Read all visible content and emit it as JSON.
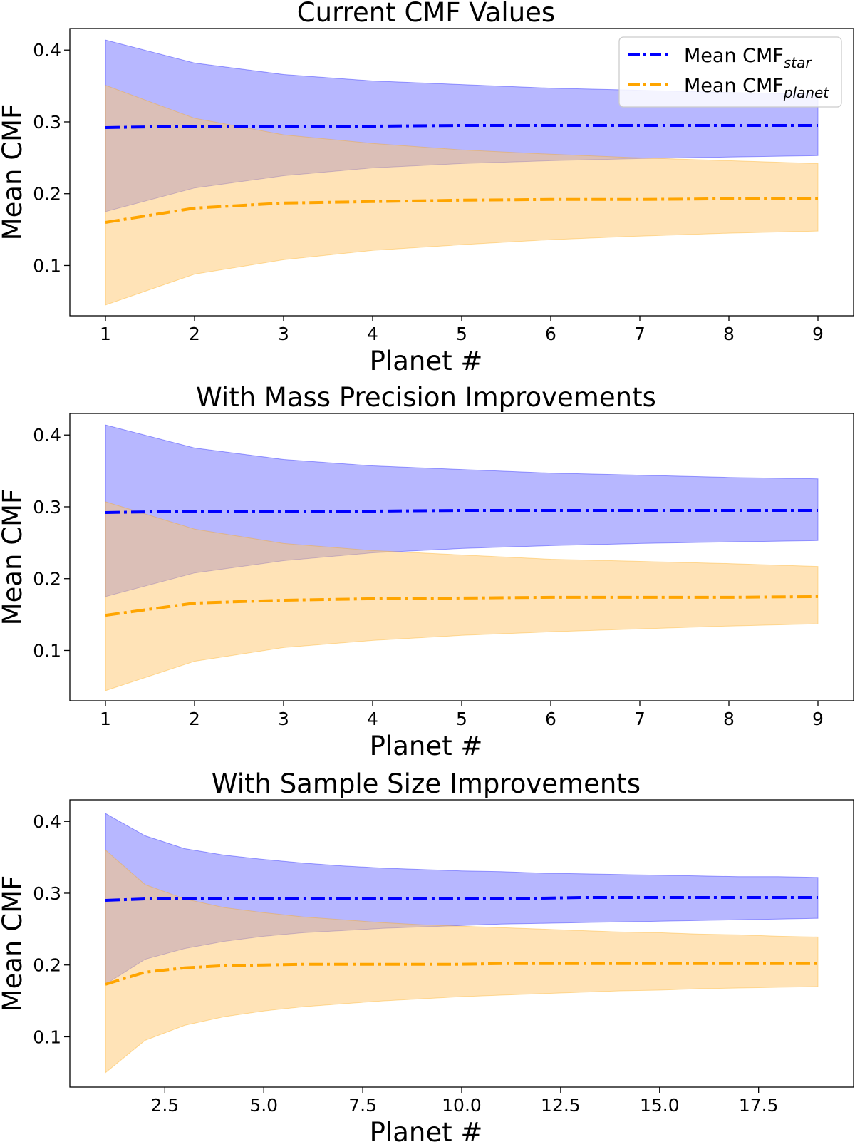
{
  "colors": {
    "star": "#0000ff",
    "planet": "#ffa500",
    "star_fill": "#7070ff",
    "planet_fill": "#ffc870"
  },
  "legend": {
    "placement": "top-right",
    "entries": [
      {
        "base": "Mean CMF",
        "sub": "star"
      },
      {
        "base": "Mean CMF",
        "sub": "planet"
      }
    ]
  },
  "chart_data": [
    {
      "type": "line",
      "title": "Current CMF Values",
      "xlabel": "Planet #",
      "ylabel": "Mean CMF",
      "xlim": [
        0.6,
        9.4
      ],
      "ylim": [
        0.03,
        0.43
      ],
      "xticks": [
        1,
        2,
        3,
        4,
        5,
        6,
        7,
        8,
        9
      ],
      "xtick_labels": [
        "1",
        "2",
        "3",
        "4",
        "5",
        "6",
        "7",
        "8",
        "9"
      ],
      "yticks": [
        0.1,
        0.2,
        0.3,
        0.4
      ],
      "ytick_labels": [
        "0.1",
        "0.2",
        "0.3",
        "0.4"
      ],
      "grid": false,
      "legend": true,
      "x": [
        1,
        2,
        3,
        4,
        5,
        6,
        7,
        8,
        9
      ],
      "series": [
        {
          "name": "Mean CMF star",
          "key": "star",
          "mean": [
            0.292,
            0.294,
            0.294,
            0.294,
            0.295,
            0.295,
            0.295,
            0.295,
            0.295
          ],
          "lower": [
            0.175,
            0.208,
            0.225,
            0.236,
            0.242,
            0.246,
            0.249,
            0.251,
            0.253
          ],
          "upper": [
            0.414,
            0.382,
            0.366,
            0.357,
            0.352,
            0.347,
            0.344,
            0.341,
            0.339
          ]
        },
        {
          "name": "Mean CMF planet",
          "key": "planet",
          "mean": [
            0.16,
            0.18,
            0.187,
            0.189,
            0.191,
            0.192,
            0.192,
            0.193,
            0.193
          ],
          "lower": [
            0.045,
            0.088,
            0.108,
            0.121,
            0.129,
            0.136,
            0.141,
            0.145,
            0.148
          ],
          "upper": [
            0.351,
            0.305,
            0.282,
            0.27,
            0.261,
            0.255,
            0.25,
            0.246,
            0.242
          ]
        }
      ]
    },
    {
      "type": "line",
      "title": "With Mass Precision Improvements",
      "xlabel": "Planet #",
      "ylabel": "Mean CMF",
      "xlim": [
        0.6,
        9.4
      ],
      "ylim": [
        0.03,
        0.43
      ],
      "xticks": [
        1,
        2,
        3,
        4,
        5,
        6,
        7,
        8,
        9
      ],
      "xtick_labels": [
        "1",
        "2",
        "3",
        "4",
        "5",
        "6",
        "7",
        "8",
        "9"
      ],
      "yticks": [
        0.1,
        0.2,
        0.3,
        0.4
      ],
      "ytick_labels": [
        "0.1",
        "0.2",
        "0.3",
        "0.4"
      ],
      "grid": false,
      "legend": false,
      "x": [
        1,
        2,
        3,
        4,
        5,
        6,
        7,
        8,
        9
      ],
      "series": [
        {
          "name": "Mean CMF star",
          "key": "star",
          "mean": [
            0.292,
            0.294,
            0.294,
            0.294,
            0.295,
            0.295,
            0.295,
            0.295,
            0.295
          ],
          "lower": [
            0.175,
            0.208,
            0.225,
            0.236,
            0.242,
            0.246,
            0.249,
            0.251,
            0.253
          ],
          "upper": [
            0.414,
            0.382,
            0.366,
            0.357,
            0.352,
            0.347,
            0.344,
            0.341,
            0.339
          ]
        },
        {
          "name": "Mean CMF planet",
          "key": "planet",
          "mean": [
            0.149,
            0.166,
            0.17,
            0.172,
            0.173,
            0.174,
            0.174,
            0.174,
            0.175
          ],
          "lower": [
            0.044,
            0.085,
            0.104,
            0.114,
            0.121,
            0.126,
            0.13,
            0.134,
            0.137
          ],
          "upper": [
            0.307,
            0.269,
            0.249,
            0.239,
            0.233,
            0.227,
            0.224,
            0.221,
            0.217
          ]
        }
      ]
    },
    {
      "type": "line",
      "title": "With Sample Size Improvements",
      "xlabel": "Planet #",
      "ylabel": "Mean CMF",
      "xlim": [
        0.1,
        19.9
      ],
      "ylim": [
        0.03,
        0.43
      ],
      "xticks": [
        2.5,
        5,
        7.5,
        10,
        12.5,
        15,
        17.5
      ],
      "xtick_labels": [
        "2.5",
        "5.0",
        "7.5",
        "10.0",
        "12.5",
        "15.0",
        "17.5"
      ],
      "yticks": [
        0.1,
        0.2,
        0.3,
        0.4
      ],
      "ytick_labels": [
        "0.1",
        "0.2",
        "0.3",
        "0.4"
      ],
      "grid": false,
      "legend": false,
      "x": [
        1,
        2,
        3,
        4,
        5,
        6,
        7,
        8,
        9,
        10,
        11,
        12,
        13,
        14,
        15,
        16,
        17,
        18,
        19
      ],
      "series": [
        {
          "name": "Mean CMF star",
          "key": "star",
          "mean": [
            0.29,
            0.292,
            0.292,
            0.293,
            0.293,
            0.293,
            0.293,
            0.293,
            0.293,
            0.293,
            0.293,
            0.293,
            0.294,
            0.294,
            0.294,
            0.294,
            0.294,
            0.294,
            0.294
          ],
          "lower": [
            0.173,
            0.208,
            0.223,
            0.233,
            0.24,
            0.245,
            0.248,
            0.251,
            0.253,
            0.255,
            0.257,
            0.258,
            0.259,
            0.26,
            0.261,
            0.262,
            0.263,
            0.264,
            0.265
          ],
          "upper": [
            0.411,
            0.38,
            0.362,
            0.353,
            0.347,
            0.342,
            0.338,
            0.335,
            0.333,
            0.331,
            0.33,
            0.328,
            0.327,
            0.326,
            0.325,
            0.324,
            0.323,
            0.323,
            0.322
          ]
        },
        {
          "name": "Mean CMF planet",
          "key": "planet",
          "mean": [
            0.173,
            0.19,
            0.196,
            0.199,
            0.2,
            0.201,
            0.201,
            0.201,
            0.201,
            0.201,
            0.202,
            0.202,
            0.202,
            0.202,
            0.202,
            0.202,
            0.202,
            0.202,
            0.202
          ],
          "lower": [
            0.05,
            0.095,
            0.116,
            0.128,
            0.136,
            0.142,
            0.146,
            0.15,
            0.153,
            0.156,
            0.158,
            0.16,
            0.162,
            0.164,
            0.165,
            0.167,
            0.168,
            0.169,
            0.17
          ],
          "upper": [
            0.36,
            0.312,
            0.292,
            0.28,
            0.273,
            0.267,
            0.263,
            0.259,
            0.256,
            0.254,
            0.252,
            0.25,
            0.248,
            0.246,
            0.245,
            0.243,
            0.242,
            0.24,
            0.239
          ]
        }
      ]
    }
  ]
}
